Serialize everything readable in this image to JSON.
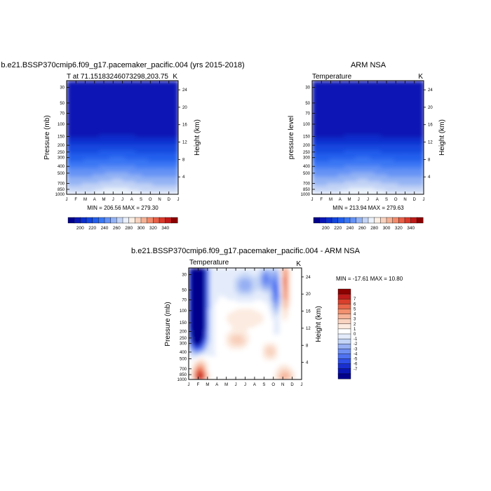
{
  "colors": {
    "temp_scale": [
      "#00008b",
      "#0a16b4",
      "#0d2fcd",
      "#1446de",
      "#235eec",
      "#3a77f4",
      "#6492f5",
      "#93b2f4",
      "#c2d3f5",
      "#eaf1fb",
      "#fbeee3",
      "#f7d3bf",
      "#f5b195",
      "#f28b6c",
      "#e86048",
      "#d93a2b",
      "#c01a1a",
      "#8b0000"
    ],
    "diff_scale": [
      "#00008b",
      "#0a16b4",
      "#1a2fd0",
      "#2f4fe8",
      "#4f72f2",
      "#6f8ff3",
      "#97b0f3",
      "#c3d4f6",
      "#e4ecfb",
      "#ffffff",
      "#fcebe0",
      "#f8d3c0",
      "#f6b49a",
      "#f2906f",
      "#e8664a",
      "#d93f2c",
      "#bd1b1b",
      "#8b0000"
    ]
  },
  "chart_data": [
    {
      "type": "heatmap",
      "title": "b.e21.BSSP370cmip6.f09_g17.pacemaker_pacific.004 (yrs 2015-2018)",
      "left_label": "T at 71.15183246073298,203.75",
      "right_label": "K",
      "ylabel": "Pressure (mb)",
      "right_axis_label": "Height (km)",
      "x_ticks": [
        "J",
        "F",
        "M",
        "A",
        "M",
        "J",
        "J",
        "A",
        "S",
        "O",
        "N",
        "D",
        "J"
      ],
      "pressure_ticks": [
        "30",
        "50",
        "70",
        "100",
        "150",
        "200",
        "250",
        "300",
        "400",
        "500",
        "700",
        "850",
        "1000"
      ],
      "height_ticks": [
        "24",
        "20",
        "16",
        "12",
        "8",
        "4"
      ],
      "stats": "MIN = 206.56 MAX = 279.30",
      "colorbar_labels": [
        "200",
        "220",
        "240",
        "260",
        "280",
        "300",
        "320",
        "340"
      ],
      "variant": "model"
    },
    {
      "type": "heatmap",
      "title": "ARM NSA",
      "left_label": "Temperature",
      "right_label": "K",
      "ylabel": "pressure level",
      "right_axis_label": "Height (km)",
      "x_ticks": [
        "J",
        "F",
        "M",
        "A",
        "M",
        "J",
        "J",
        "A",
        "S",
        "O",
        "N",
        "D",
        "J"
      ],
      "pressure_ticks": [
        "30",
        "50",
        "70",
        "100",
        "150",
        "200",
        "250",
        "300",
        "400",
        "500",
        "700",
        "850",
        "1000"
      ],
      "height_ticks": [
        "24",
        "20",
        "16",
        "12",
        "8",
        "4"
      ],
      "stats": "MIN = 213.94 MAX = 279.63",
      "colorbar_labels": [
        "200",
        "220",
        "240",
        "260",
        "280",
        "300",
        "320",
        "340"
      ],
      "variant": "obs"
    },
    {
      "type": "heatmap",
      "title": "b.e21.BSSP370cmip6.f09_g17.pacemaker_pacific.004 - ARM NSA",
      "left_label": "Temperature",
      "right_label": "K",
      "ylabel": "Pressure (mb)",
      "right_axis_label": "Height (km)",
      "x_ticks": [
        "J",
        "F",
        "M",
        "A",
        "M",
        "J",
        "J",
        "A",
        "S",
        "O",
        "N",
        "D",
        "J"
      ],
      "pressure_ticks": [
        "30",
        "50",
        "70",
        "100",
        "150",
        "200",
        "250",
        "300",
        "400",
        "500",
        "700",
        "850",
        "1000"
      ],
      "height_ticks": [
        "24",
        "20",
        "16",
        "12",
        "8",
        "4"
      ],
      "stats": "MIN = -17.61 MAX =  10.80",
      "colorbar_labels": [
        "7",
        "6",
        "5",
        "4",
        "3",
        "2",
        "1",
        "0",
        "-1",
        "-2",
        "-3",
        "-4",
        "-5",
        "-6",
        "-7"
      ],
      "variant": "diff"
    }
  ]
}
